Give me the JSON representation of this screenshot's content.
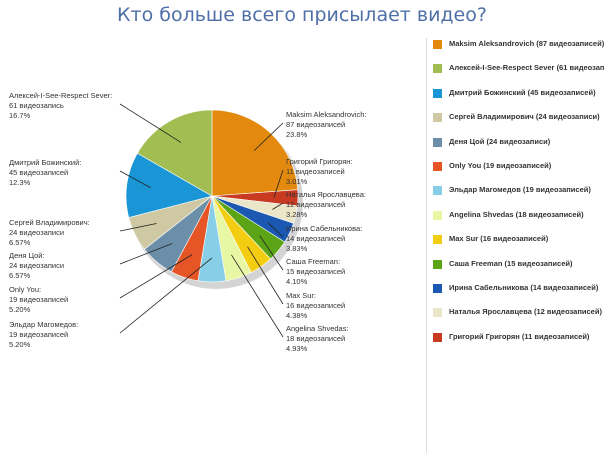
{
  "chart_data": {
    "type": "pie",
    "title": "Кто больше всего присылает видео?",
    "slices": [
      {
        "name": "Maksim Aleksandrovich",
        "count_label": "87 видеозаписей",
        "pct_label": "23.8%",
        "value": 87,
        "color": "#e38a0e",
        "legend": "Maksim Aleksandrovich (87 видеозаписей)"
      },
      {
        "name": "Григорий Григорян",
        "count_label": "11 видеозаписей",
        "pct_label": "3.01%",
        "value": 11,
        "color": "#c93a22",
        "legend": "Григорий Григорян (11 видеозаписей)"
      },
      {
        "name": "Наталья Ярославцева",
        "count_label": "12 видеозаписей",
        "pct_label": "3.28%",
        "value": 12,
        "color": "#ece6c8",
        "legend": "Наталья Ярославцева (12 видеозаписей)"
      },
      {
        "name": "Ирина Сабельникова",
        "count_label": "14 видеозаписей",
        "pct_label": "3.83%",
        "value": 14,
        "color": "#1b58b1",
        "legend": "Ирина Сабельникова (14 видеозаписей)"
      },
      {
        "name": "Саша Freeman",
        "count_label": "15 видеозаписей",
        "pct_label": "4.10%",
        "value": 15,
        "color": "#5ba416",
        "legend": "Саша Freeman (15 видеозаписей)"
      },
      {
        "name": "Max Sur",
        "count_label": "16 видеозаписей",
        "pct_label": "4.38%",
        "value": 16,
        "color": "#f3cd12",
        "legend": "Max Sur (16 видеозаписей)"
      },
      {
        "name": "Angelina Shvedas",
        "count_label": "18 видеозаписей",
        "pct_label": "4.93%",
        "value": 18,
        "color": "#e8f7a4",
        "legend": "Angelina Shvedas (18 видеозаписей)"
      },
      {
        "name": "Эльдар Магомедов",
        "count_label": "19 видеозаписей",
        "pct_label": "5.20%",
        "value": 19,
        "color": "#86cfe6",
        "legend": "Эльдар Магомедов (19 видеозаписей)"
      },
      {
        "name": "Only You",
        "count_label": "19 видеозаписей",
        "pct_label": "5.20%",
        "value": 19,
        "color": "#e55525",
        "legend": "Only You (19 видеозаписей)"
      },
      {
        "name": "Деня Цой",
        "count_label": "24 видеозаписи",
        "pct_label": "6.57%",
        "value": 24,
        "color": "#6b8fa9",
        "legend": "Деня Цой (24 видеозаписи)"
      },
      {
        "name": "Сергей Владимирович",
        "count_label": "24 видеозаписи",
        "pct_label": "6.57%",
        "value": 24,
        "color": "#cfc9a3",
        "legend": "Сергей Владимирович (24 видеозаписи)"
      },
      {
        "name": "Дмитрий Божинский",
        "count_label": "45 видеозаписей",
        "pct_label": "12.3%",
        "value": 45,
        "color": "#1a95d6",
        "legend": "Дмитрий Божинский (45 видеозаписей)"
      },
      {
        "name": "Алексей-I-See-Respect Sever",
        "count_label": "61 видеозапись",
        "pct_label": "16.7%",
        "value": 61,
        "color": "#a2be53",
        "legend": "Алексей-I-See-Respect Sever (61 видеозапись)"
      }
    ],
    "legend_order": [
      0,
      12,
      11,
      10,
      9,
      8,
      7,
      6,
      5,
      4,
      3,
      2,
      1
    ],
    "legend_placement": "right",
    "shadow_color": "#b7b7b7",
    "leader_color": "#222222"
  }
}
